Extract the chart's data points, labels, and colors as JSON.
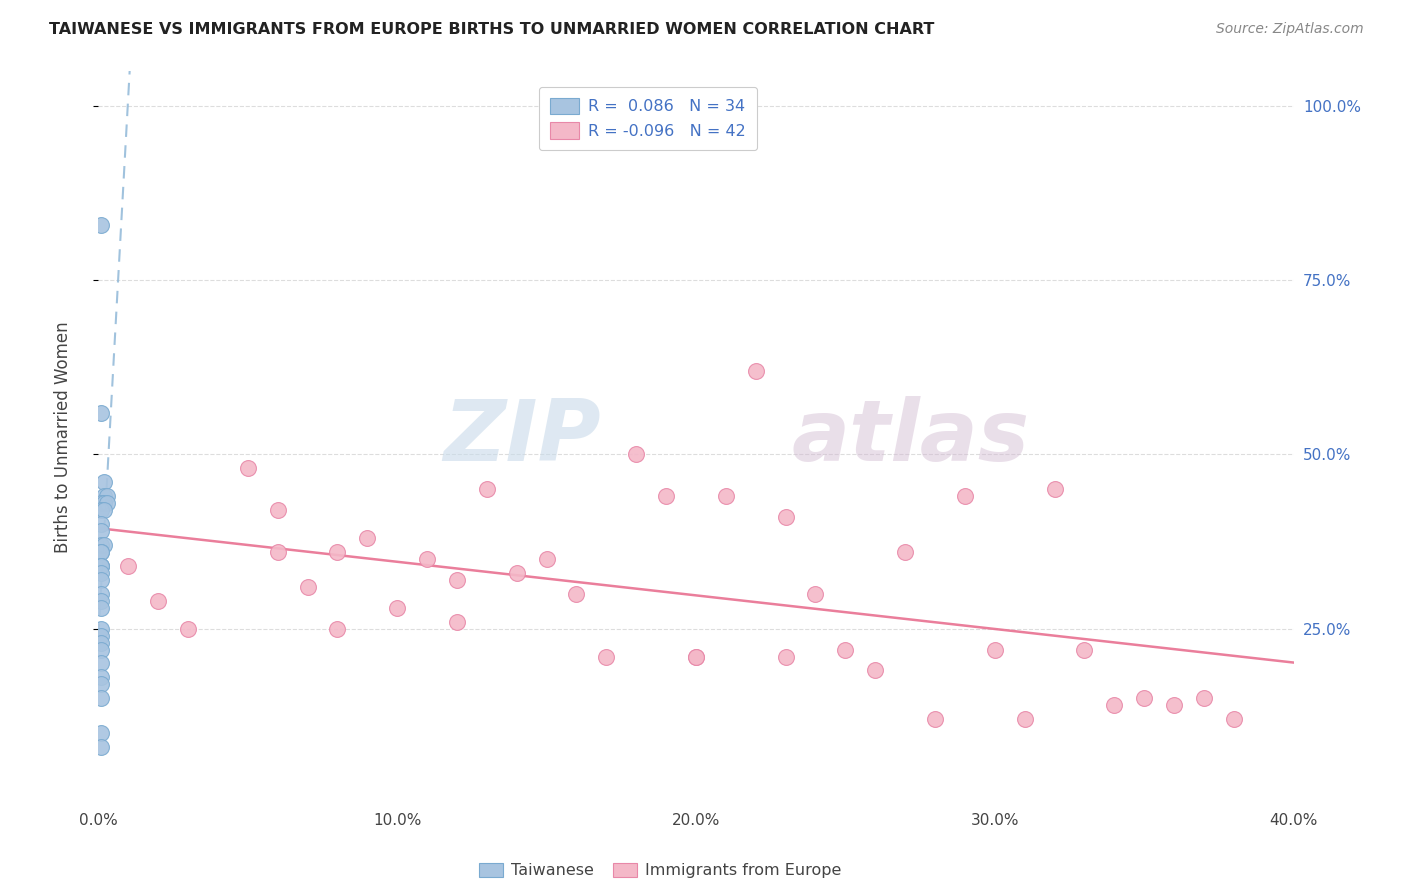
{
  "title": "TAIWANESE VS IMMIGRANTS FROM EUROPE BIRTHS TO UNMARRIED WOMEN CORRELATION CHART",
  "source": "Source: ZipAtlas.com",
  "ylabel": "Births to Unmarried Women",
  "xlim": [
    0.0,
    0.4
  ],
  "ylim": [
    0.0,
    1.05
  ],
  "taiwanese_color": "#a8c4e0",
  "europe_color": "#f4b8c8",
  "taiwanese_edge": "#7aaad0",
  "europe_edge": "#e888a8",
  "trend_blue": "#90b8d8",
  "trend_pink": "#e87090",
  "watermark_zip_color": "#c8daea",
  "watermark_atlas_color": "#d0b8d0",
  "grid_color": "#dddddd",
  "background_color": "#ffffff",
  "right_axis_color": "#4472c4",
  "taiwanese_x": [
    0.001,
    0.001,
    0.002,
    0.002,
    0.003,
    0.001,
    0.002,
    0.003,
    0.001,
    0.002,
    0.001,
    0.001,
    0.001,
    0.002,
    0.001,
    0.001,
    0.001,
    0.001,
    0.001,
    0.001,
    0.001,
    0.001,
    0.001,
    0.001,
    0.001,
    0.001,
    0.001,
    0.001,
    0.001,
    0.001,
    0.001,
    0.001,
    0.001,
    0.001
  ],
  "taiwanese_y": [
    0.83,
    0.56,
    0.46,
    0.44,
    0.44,
    0.43,
    0.43,
    0.43,
    0.42,
    0.42,
    0.4,
    0.39,
    0.37,
    0.37,
    0.36,
    0.36,
    0.34,
    0.34,
    0.34,
    0.33,
    0.32,
    0.3,
    0.29,
    0.28,
    0.25,
    0.24,
    0.23,
    0.22,
    0.2,
    0.18,
    0.17,
    0.15,
    0.1,
    0.08
  ],
  "europe_x": [
    0.01,
    0.02,
    0.03,
    0.05,
    0.06,
    0.06,
    0.07,
    0.08,
    0.08,
    0.09,
    0.1,
    0.11,
    0.12,
    0.12,
    0.13,
    0.14,
    0.15,
    0.16,
    0.17,
    0.18,
    0.19,
    0.2,
    0.2,
    0.21,
    0.22,
    0.23,
    0.23,
    0.24,
    0.25,
    0.26,
    0.27,
    0.28,
    0.29,
    0.3,
    0.31,
    0.32,
    0.33,
    0.34,
    0.35,
    0.36,
    0.37,
    0.38
  ],
  "europe_y": [
    0.34,
    0.29,
    0.25,
    0.48,
    0.36,
    0.42,
    0.31,
    0.36,
    0.25,
    0.38,
    0.28,
    0.35,
    0.32,
    0.26,
    0.45,
    0.33,
    0.35,
    0.3,
    0.21,
    0.5,
    0.44,
    0.21,
    0.21,
    0.44,
    0.62,
    0.41,
    0.21,
    0.3,
    0.22,
    0.19,
    0.36,
    0.12,
    0.44,
    0.22,
    0.12,
    0.45,
    0.22,
    0.14,
    0.15,
    0.14,
    0.15,
    0.12
  ],
  "xticks": [
    0.0,
    0.1,
    0.2,
    0.3,
    0.4
  ],
  "xticklabels": [
    "0.0%",
    "10.0%",
    "20.0%",
    "30.0%",
    "40.0%"
  ],
  "yticks": [
    0.25,
    0.5,
    0.75,
    1.0
  ],
  "yticklabels_right": [
    "25.0%",
    "50.0%",
    "75.0%",
    "100.0%"
  ]
}
